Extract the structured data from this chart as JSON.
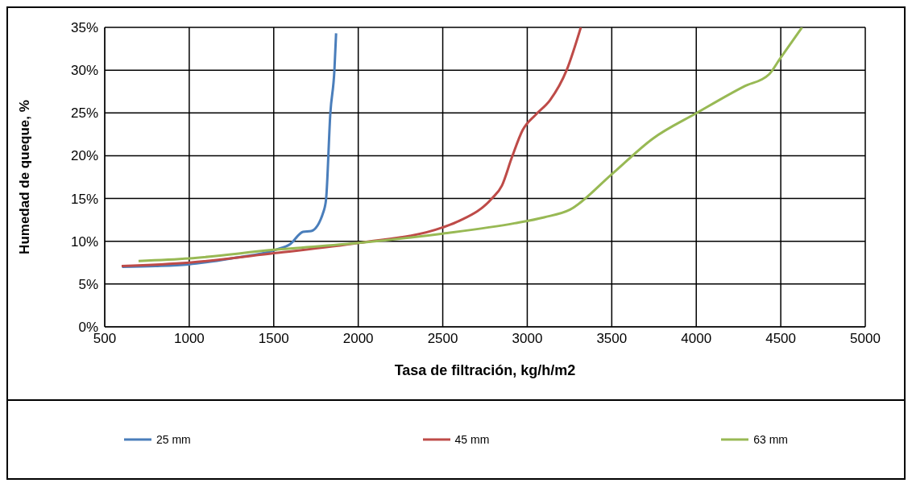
{
  "chart_data": {
    "type": "line",
    "xlabel": "Tasa de filtración, kg/h/m2",
    "ylabel": "Humedad de queque, %",
    "xlim": [
      500,
      5000
    ],
    "xticks": [
      500,
      1000,
      1500,
      2000,
      2500,
      3000,
      3500,
      4000,
      4500,
      5000
    ],
    "ylim": [
      0,
      35
    ],
    "yticks": [
      {
        "value": 0,
        "label": "0%"
      },
      {
        "value": 5,
        "label": "5%"
      },
      {
        "value": 10,
        "label": "10%"
      },
      {
        "value": 15,
        "label": "15%"
      },
      {
        "value": 20,
        "label": "20%"
      },
      {
        "value": 25,
        "label": "25%"
      },
      {
        "value": 30,
        "label": "30%"
      },
      {
        "value": 35,
        "label": "35%"
      }
    ],
    "grid": true,
    "legend": "bottom",
    "marker": "none",
    "line_style": "solid",
    "series": [
      {
        "name": "25 mm",
        "color": "#4a7ebb",
        "x": [
          603,
          800,
          995,
          1250,
          1511,
          1599,
          1673,
          1722,
          1795,
          1810,
          1835,
          1859,
          1869
        ],
        "values": [
          7.0,
          7.1,
          7.3,
          8.0,
          9.0,
          9.7,
          11.1,
          11.2,
          13.5,
          15,
          25,
          30,
          34.3
        ]
      },
      {
        "name": "45 mm",
        "color": "#be4b48",
        "x": [
          600,
          1000,
          1500,
          2000,
          2497,
          2600,
          2791,
          2850,
          2909,
          2973,
          3050,
          3135,
          3233,
          3317
        ],
        "values": [
          7.1,
          7.5,
          8.6,
          9.8,
          11.6,
          12.4,
          15,
          16.5,
          19.8,
          23,
          24.8,
          26.5,
          30,
          35
        ]
      },
      {
        "name": "63 mm",
        "color": "#98b954",
        "x": [
          700,
          1000,
          1500,
          2000,
          2500,
          2924,
          3100,
          3253,
          3498,
          3743,
          4003,
          4283,
          4430,
          4494,
          4626
        ],
        "values": [
          7.7,
          8.0,
          9.0,
          9.8,
          10.9,
          12.1,
          12.8,
          13.7,
          17.8,
          22,
          25,
          28.1,
          29.5,
          31.3,
          35
        ]
      }
    ]
  }
}
